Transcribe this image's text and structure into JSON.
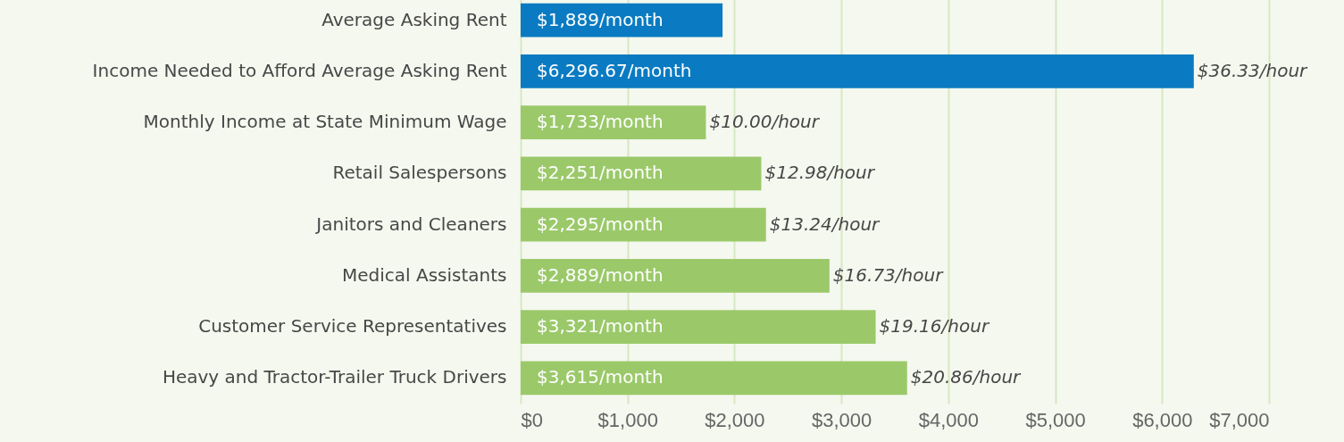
{
  "chart_data": {
    "type": "bar",
    "orientation": "horizontal",
    "categories": [
      "Average Asking Rent",
      "Income Needed to Afford Average Asking Rent",
      "Monthly Income at State Minimum Wage",
      "Retail Salespersons",
      "Janitors and Cleaners",
      "Medical Assistants",
      "Customer Service Representatives",
      "Heavy and Tractor-Trailer Truck Drivers"
    ],
    "values": [
      1889,
      6296.67,
      1733,
      2251,
      2295,
      2889,
      3321,
      3615
    ],
    "colors": [
      "#0a7bc2",
      "#0a7bc2",
      "#9bc96a",
      "#9bc96a",
      "#9bc96a",
      "#9bc96a",
      "#9bc96a",
      "#9bc96a"
    ],
    "value_labels": [
      "$1,889/month",
      "$6,296.67/month",
      "$1,733/month",
      "$2,251/month",
      "$2,295/month",
      "$2,889/month",
      "$3,321/month",
      "$3,615/month"
    ],
    "annotations": [
      {
        "text": "$36.33/hour",
        "x": 6296.67,
        "y": "Income Needed to Afford Average Asking Rent"
      },
      {
        "text": "$10.00/hour",
        "x": 1733,
        "y": "Monthly Income at State Minimum Wage"
      },
      {
        "text": "$12.98/hour",
        "x": 2251,
        "y": "Retail Salespersons"
      },
      {
        "text": "$13.24/hour",
        "x": 2295,
        "y": "Janitors and Cleaners"
      },
      {
        "text": "$16.73/hour",
        "x": 2889,
        "y": "Medical Assistants"
      },
      {
        "text": "$19.16/hour",
        "x": 3321,
        "y": "Customer Service Representatives"
      },
      {
        "text": "$20.86/hour",
        "x": 3615,
        "y": "Heavy and Tractor-Trailer Truck Drivers"
      }
    ],
    "xlim": [
      0,
      7000
    ],
    "xticks": [
      {
        "value": 0,
        "label": "$0"
      },
      {
        "value": 1000,
        "label": "$1,000"
      },
      {
        "value": 2000,
        "label": "$2,000"
      },
      {
        "value": 3000,
        "label": "$3,000"
      },
      {
        "value": 4000,
        "label": "$4,000"
      },
      {
        "value": 5000,
        "label": "$5,000"
      },
      {
        "value": 6000,
        "label": "$6,000"
      },
      {
        "value": 7000,
        "label": "$7,000"
      }
    ],
    "grid": "x"
  }
}
